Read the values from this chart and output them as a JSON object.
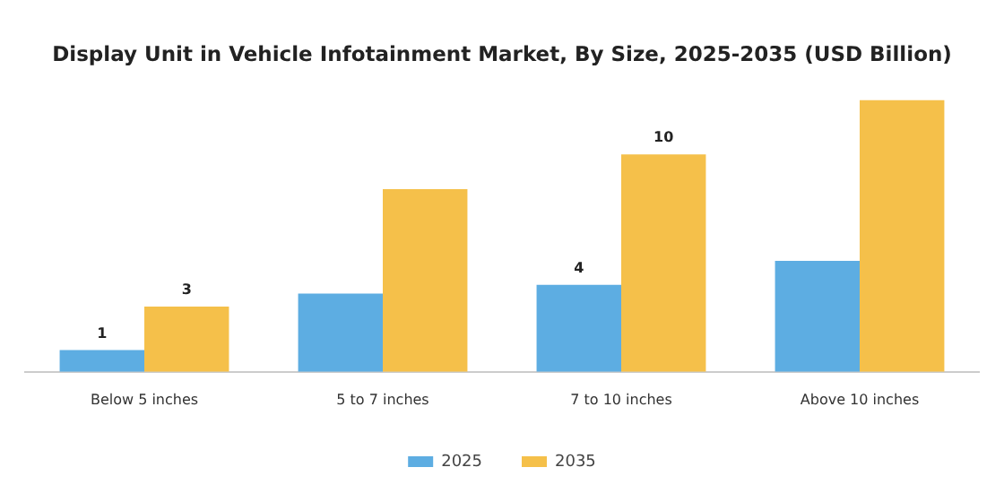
{
  "chart_data": {
    "type": "bar",
    "title": "Display Unit in Vehicle Infotainment Market, By Size, 2025-2035 (USD Billion)",
    "categories": [
      "Below 5 inches",
      "5 to 7 inches",
      "7 to 10 inches",
      "Above 10 inches"
    ],
    "legend": "bottom",
    "series": [
      {
        "name": "2025",
        "color": "#5dade2",
        "values": [
          1,
          3.6,
          4,
          5.1
        ],
        "value_labels": [
          "1",
          null,
          "4",
          null
        ]
      },
      {
        "name": "2035",
        "color": "#f5c04a",
        "values": [
          3,
          8.4,
          10,
          12.5
        ],
        "value_labels": [
          "3",
          null,
          "10",
          null
        ]
      }
    ]
  }
}
